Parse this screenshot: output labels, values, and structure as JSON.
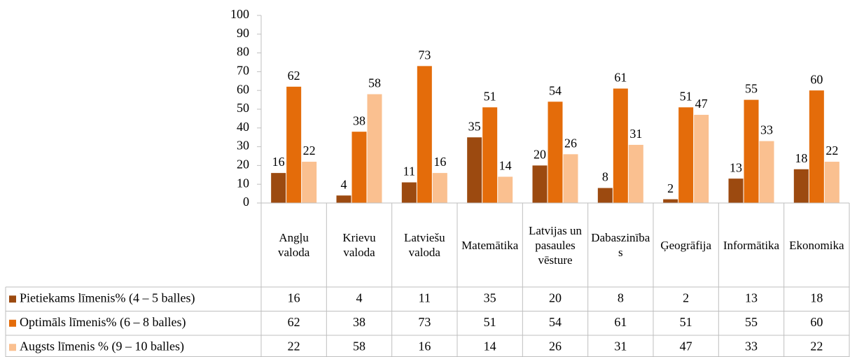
{
  "chart_data": {
    "type": "bar",
    "categories": [
      "Angļu valoda",
      "Krievu valoda",
      "Latviešu valoda",
      "Matemātika",
      "Latvijas un pasaules vēsture",
      "Dabaszinības",
      "Ģeogrāfija",
      "Informātika",
      "Ekonomika"
    ],
    "series": [
      {
        "name": "Pietiekams līmenis% (4 – 5 balles)",
        "color": "#9c4a10",
        "values": [
          16,
          4,
          11,
          35,
          20,
          8,
          2,
          13,
          18
        ]
      },
      {
        "name": "Optimāls līmenis% (6 – 8 balles)",
        "color": "#e46c0a",
        "values": [
          62,
          38,
          73,
          51,
          54,
          61,
          51,
          55,
          60
        ]
      },
      {
        "name": "Augsts līmenis % (9 – 10 balles)",
        "color": "#fac090",
        "values": [
          22,
          58,
          16,
          14,
          26,
          31,
          47,
          33,
          22
        ]
      }
    ],
    "ylim": [
      0,
      100
    ],
    "yticks": [
      0,
      10,
      20,
      30,
      40,
      50,
      60,
      70,
      80,
      90,
      100
    ],
    "data_table": true
  }
}
